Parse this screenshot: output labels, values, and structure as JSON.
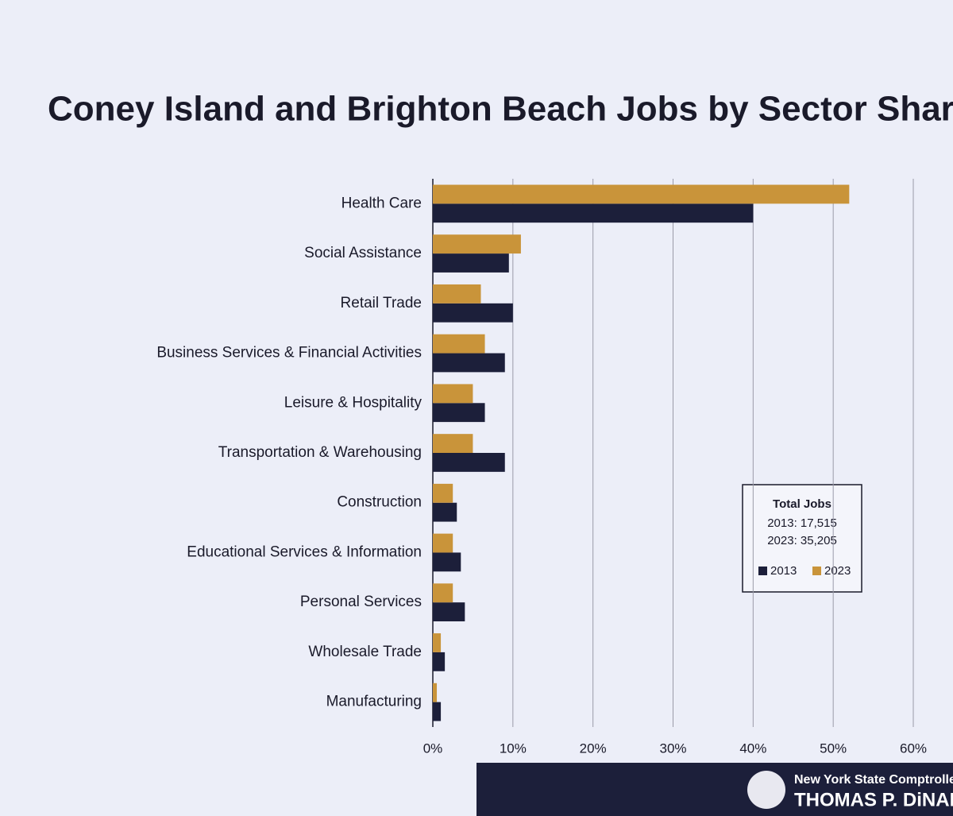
{
  "chart_data": {
    "type": "bar",
    "orientation": "horizontal",
    "title": "Coney Island and Brighton Beach Jobs by Sector Shares",
    "categories": [
      "Health Care",
      "Social Assistance",
      "Retail Trade",
      "Business Services & Financial Activities",
      "Leisure & Hospitality",
      "Transportation & Warehousing",
      "Construction",
      "Educational Services & Information",
      "Personal Services",
      "Wholesale Trade",
      "Manufacturing"
    ],
    "series": [
      {
        "name": "2013",
        "color": "#1c1f3a",
        "values": [
          40,
          9.5,
          10,
          9,
          6.5,
          9,
          3,
          3.5,
          4,
          1.5,
          1
        ]
      },
      {
        "name": "2023",
        "color": "#c9943a",
        "values": [
          52,
          11,
          6,
          6.5,
          5,
          5,
          2.5,
          2.5,
          2.5,
          1,
          0.5
        ]
      }
    ],
    "xlim": [
      0,
      60
    ],
    "xticks": [
      {
        "value": 0,
        "label": "0%"
      },
      {
        "value": 10,
        "label": "10%"
      },
      {
        "value": 20,
        "label": "20%"
      },
      {
        "value": 30,
        "label": "30%"
      },
      {
        "value": 40,
        "label": "40%"
      },
      {
        "value": 50,
        "label": "50%"
      },
      {
        "value": 60,
        "label": "60%"
      }
    ],
    "grid": true,
    "legend_title": "Total Jobs",
    "legend_notes": [
      "2013: 17,515",
      "2023: 35,205"
    ]
  },
  "footer": {
    "line1": "New York State Comptroller",
    "line2": "THOMAS P. DiNAPOLI"
  }
}
